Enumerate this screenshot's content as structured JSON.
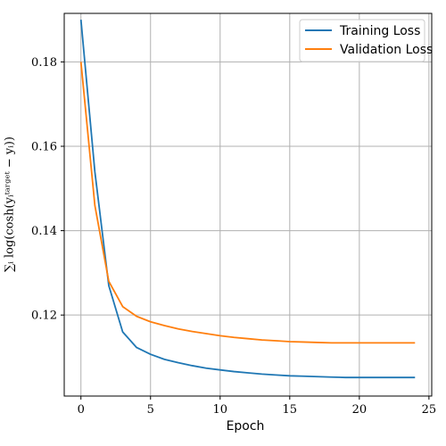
{
  "chart_data": {
    "type": "line",
    "xlabel": "Epoch",
    "ylabel": "∑ᵢ log(cosh(yᵢᵗᵃʳᵍᵉᵗ − yᵢ))",
    "xlim": [
      -1.2,
      25.2
    ],
    "ylim": [
      0.1008,
      0.1915
    ],
    "xticks": [
      0,
      5,
      10,
      15,
      20,
      25
    ],
    "yticks": [
      0.12,
      0.14,
      0.16,
      0.18
    ],
    "xtick_labels": [
      "0",
      "5",
      "10",
      "15",
      "20",
      "25"
    ],
    "ytick_labels": [
      "0.12",
      "0.14",
      "0.16",
      "0.18"
    ],
    "grid": true,
    "legend_position": "top-right",
    "x": [
      0,
      1,
      2,
      3,
      4,
      5,
      6,
      7,
      8,
      9,
      10,
      11,
      12,
      13,
      14,
      15,
      16,
      17,
      18,
      19,
      20,
      21,
      22,
      23,
      24
    ],
    "series": [
      {
        "name": "Training Loss",
        "color": "#1f77b4",
        "values": [
          0.19,
          0.154,
          0.127,
          0.116,
          0.1123,
          0.1107,
          0.1095,
          0.1087,
          0.108,
          0.1074,
          0.107,
          0.1066,
          0.1063,
          0.106,
          0.1058,
          0.1056,
          0.1055,
          0.1054,
          0.1053,
          0.1052,
          0.1052,
          0.1052,
          0.1052,
          0.1052,
          0.1052
        ]
      },
      {
        "name": "Validation Loss",
        "color": "#ff7f0e",
        "values": [
          0.18,
          0.146,
          0.128,
          0.122,
          0.1197,
          0.1184,
          0.1175,
          0.1167,
          0.1161,
          0.1156,
          0.1151,
          0.1147,
          0.1144,
          0.1141,
          0.1139,
          0.1137,
          0.1136,
          0.1135,
          0.1134,
          0.1134,
          0.1134,
          0.1134,
          0.1134,
          0.1134,
          0.1134
        ]
      }
    ]
  }
}
